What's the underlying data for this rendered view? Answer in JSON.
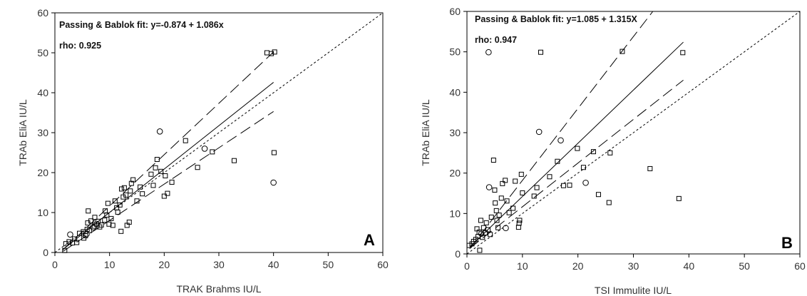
{
  "chart_data": [
    {
      "type": "scatter",
      "panel_label": "A",
      "xlabel": "TRAK Brahms IU/L",
      "ylabel": "TRAb EliA IU/L",
      "xlim": [
        0,
        60
      ],
      "ylim": [
        0,
        60
      ],
      "xticks": [
        0,
        10,
        20,
        30,
        40,
        50,
        60
      ],
      "yticks": [
        0,
        10,
        20,
        30,
        40,
        50,
        60
      ],
      "fit_text": "Passing & Bablok  fit: y=-0.874 + 1.086x",
      "rho_text": "rho:  0.925",
      "fit": {
        "intercept": -0.874,
        "slope": 1.086
      },
      "lines": [
        {
          "name": "identity",
          "style": "short-dash",
          "x": [
            0,
            60
          ],
          "y": [
            0,
            60
          ]
        },
        {
          "name": "fit",
          "style": "solid",
          "x": [
            1.5,
            40
          ],
          "y": [
            0.8,
            42.6
          ]
        },
        {
          "name": "upper-ci",
          "style": "long-dash",
          "x": [
            1.5,
            40
          ],
          "y": [
            0.7,
            50.2
          ]
        },
        {
          "name": "lower-ci",
          "style": "long-dash",
          "x": [
            1.5,
            40
          ],
          "y": [
            0.3,
            35.3
          ]
        }
      ],
      "circles": [
        {
          "x": 2.8,
          "y": 4.5
        },
        {
          "x": 19.2,
          "y": 30.3
        },
        {
          "x": 40,
          "y": 17.5
        },
        {
          "x": 7,
          "y": 6.3
        },
        {
          "x": 5.8,
          "y": 4.6
        }
      ],
      "squares": [
        {
          "x": 1.8,
          "y": 0.5
        },
        {
          "x": 2,
          "y": 2.2
        },
        {
          "x": 2.6,
          "y": 2.7
        },
        {
          "x": 3.2,
          "y": 2.4
        },
        {
          "x": 3.6,
          "y": 3.4
        },
        {
          "x": 4,
          "y": 2.5
        },
        {
          "x": 4.5,
          "y": 4.8
        },
        {
          "x": 5.2,
          "y": 5.2
        },
        {
          "x": 5.3,
          "y": 3.6
        },
        {
          "x": 5.6,
          "y": 4.2
        },
        {
          "x": 5.9,
          "y": 5.8
        },
        {
          "x": 6,
          "y": 7.4
        },
        {
          "x": 6.1,
          "y": 10.4
        },
        {
          "x": 6.3,
          "y": 5.5
        },
        {
          "x": 6.6,
          "y": 7.9
        },
        {
          "x": 7.2,
          "y": 6.6
        },
        {
          "x": 7.3,
          "y": 8.8
        },
        {
          "x": 7.6,
          "y": 7.1
        },
        {
          "x": 7.9,
          "y": 7.8
        },
        {
          "x": 8.2,
          "y": 6.4
        },
        {
          "x": 8.5,
          "y": 6.9
        },
        {
          "x": 9.1,
          "y": 8.1
        },
        {
          "x": 9.2,
          "y": 10.4
        },
        {
          "x": 9.5,
          "y": 9.4
        },
        {
          "x": 9.7,
          "y": 12.3
        },
        {
          "x": 9.9,
          "y": 7.1
        },
        {
          "x": 10.3,
          "y": 8.5
        },
        {
          "x": 10.6,
          "y": 6.8
        },
        {
          "x": 11,
          "y": 12.9
        },
        {
          "x": 11.3,
          "y": 11.2
        },
        {
          "x": 11.5,
          "y": 10.1
        },
        {
          "x": 11.9,
          "y": 11.9
        },
        {
          "x": 12.1,
          "y": 5.3
        },
        {
          "x": 12.2,
          "y": 15.9
        },
        {
          "x": 12.5,
          "y": 13.9
        },
        {
          "x": 12.7,
          "y": 16.2
        },
        {
          "x": 13,
          "y": 14.4
        },
        {
          "x": 13.2,
          "y": 6.8
        },
        {
          "x": 13.6,
          "y": 7.6
        },
        {
          "x": 13.8,
          "y": 15.4
        },
        {
          "x": 14,
          "y": 17.3
        },
        {
          "x": 14.3,
          "y": 18.2
        },
        {
          "x": 15,
          "y": 12.9
        },
        {
          "x": 15.6,
          "y": 16.4
        },
        {
          "x": 16,
          "y": 14.7
        },
        {
          "x": 17.6,
          "y": 19.6
        },
        {
          "x": 18,
          "y": 16.8
        },
        {
          "x": 18.4,
          "y": 21.2
        },
        {
          "x": 18.7,
          "y": 23.3
        },
        {
          "x": 19.4,
          "y": 20.3
        },
        {
          "x": 20,
          "y": 14.1
        },
        {
          "x": 20.2,
          "y": 19.2
        },
        {
          "x": 20.6,
          "y": 14.8
        },
        {
          "x": 21.4,
          "y": 17.6
        },
        {
          "x": 23.9,
          "y": 28
        },
        {
          "x": 26.1,
          "y": 21.3
        },
        {
          "x": 28.8,
          "y": 25.2
        },
        {
          "x": 32.8,
          "y": 23
        },
        {
          "x": 38.8,
          "y": 50
        },
        {
          "x": 39.6,
          "y": 49.8
        },
        {
          "x": 40.2,
          "y": 50.2
        },
        {
          "x": 40.1,
          "y": 25
        }
      ],
      "extra_circles": [
        {
          "x": 27.4,
          "y": 26
        }
      ]
    },
    {
      "type": "scatter",
      "panel_label": "B",
      "xlabel": "TSI Immulite IU/L",
      "ylabel": "TRAb EliA IU/L",
      "xlim": [
        0,
        60
      ],
      "ylim": [
        0,
        60
      ],
      "xticks": [
        0,
        10,
        20,
        30,
        40,
        50,
        60
      ],
      "yticks": [
        0,
        10,
        20,
        30,
        40,
        50,
        60
      ],
      "fit_text": "Passing & Bablok  fit: y=1.085 + 1.315X",
      "rho_text": "rho:  0.947",
      "fit": {
        "intercept": 1.085,
        "slope": 1.315
      },
      "lines": [
        {
          "name": "identity",
          "style": "short-dash",
          "x": [
            0,
            60
          ],
          "y": [
            0,
            60
          ]
        },
        {
          "name": "fit",
          "style": "solid",
          "x": [
            0.5,
            39
          ],
          "y": [
            1.7,
            52.4
          ]
        },
        {
          "name": "upper-ci",
          "style": "long-dash",
          "x": [
            0.5,
            33.5
          ],
          "y": [
            1.3,
            60
          ]
        },
        {
          "name": "lower-ci",
          "style": "long-dash",
          "x": [
            0.5,
            39
          ],
          "y": [
            1.4,
            43
          ]
        }
      ],
      "circles": [
        {
          "x": 3.9,
          "y": 49.9
        },
        {
          "x": 13,
          "y": 30.2
        },
        {
          "x": 16.9,
          "y": 28.1
        },
        {
          "x": 4,
          "y": 16.5
        },
        {
          "x": 21.4,
          "y": 17.6
        },
        {
          "x": 2.6,
          "y": 5
        },
        {
          "x": 7,
          "y": 6.4
        }
      ],
      "squares": [
        {
          "x": 13.3,
          "y": 49.9
        },
        {
          "x": 28,
          "y": 50.1
        },
        {
          "x": 38.9,
          "y": 49.8
        },
        {
          "x": 0.4,
          "y": 2.1
        },
        {
          "x": 0.9,
          "y": 2.5
        },
        {
          "x": 1.2,
          "y": 3.1
        },
        {
          "x": 1.6,
          "y": 3.6
        },
        {
          "x": 1.8,
          "y": 6.2
        },
        {
          "x": 2,
          "y": 4.3
        },
        {
          "x": 2.2,
          "y": 5.4
        },
        {
          "x": 2.3,
          "y": 0.9
        },
        {
          "x": 2.5,
          "y": 8.3
        },
        {
          "x": 2.8,
          "y": 4.1
        },
        {
          "x": 3,
          "y": 6.5
        },
        {
          "x": 3.3,
          "y": 5.2
        },
        {
          "x": 3.5,
          "y": 7.7
        },
        {
          "x": 3.8,
          "y": 6
        },
        {
          "x": 4.2,
          "y": 4.8
        },
        {
          "x": 4.4,
          "y": 9.1
        },
        {
          "x": 4.8,
          "y": 23.2
        },
        {
          "x": 5,
          "y": 15.8
        },
        {
          "x": 5.1,
          "y": 12.6
        },
        {
          "x": 5.3,
          "y": 10.7
        },
        {
          "x": 5.4,
          "y": 8.3
        },
        {
          "x": 5.6,
          "y": 6.5
        },
        {
          "x": 5.8,
          "y": 9.6
        },
        {
          "x": 6.2,
          "y": 13.8
        },
        {
          "x": 6.4,
          "y": 17.4
        },
        {
          "x": 6.9,
          "y": 18.2
        },
        {
          "x": 7.2,
          "y": 13.1
        },
        {
          "x": 7.6,
          "y": 10.2
        },
        {
          "x": 8.3,
          "y": 11.3
        },
        {
          "x": 8.7,
          "y": 18
        },
        {
          "x": 9.3,
          "y": 6.6
        },
        {
          "x": 9.4,
          "y": 7.6
        },
        {
          "x": 9.5,
          "y": 8.3
        },
        {
          "x": 9.8,
          "y": 19.7
        },
        {
          "x": 10,
          "y": 15.1
        },
        {
          "x": 12.1,
          "y": 14.3
        },
        {
          "x": 12.6,
          "y": 16.4
        },
        {
          "x": 14.9,
          "y": 19.1
        },
        {
          "x": 16.3,
          "y": 22.9
        },
        {
          "x": 17.4,
          "y": 16.9
        },
        {
          "x": 18.5,
          "y": 17
        },
        {
          "x": 19.9,
          "y": 26.1
        },
        {
          "x": 21,
          "y": 21.4
        },
        {
          "x": 22.8,
          "y": 25.3
        },
        {
          "x": 23.7,
          "y": 14.7
        },
        {
          "x": 25.6,
          "y": 12.7
        },
        {
          "x": 25.8,
          "y": 25
        },
        {
          "x": 33,
          "y": 21.1
        },
        {
          "x": 38.2,
          "y": 13.7
        }
      ],
      "extra_circles": []
    }
  ]
}
